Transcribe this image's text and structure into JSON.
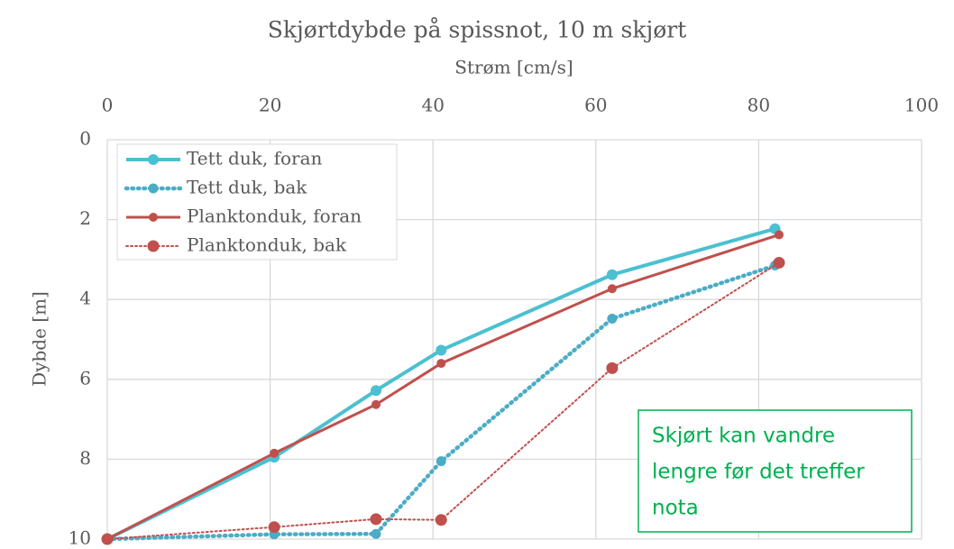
{
  "chart_data": {
    "type": "line",
    "title": "Skjørtdybde på spissnot, 10 m skjørt",
    "xlabel": "Strøm [cm/s]",
    "ylabel": "Dybde [m]",
    "xlim": [
      0,
      100
    ],
    "xticks": [
      0,
      20,
      40,
      60,
      80,
      100
    ],
    "ylim": [
      0,
      10
    ],
    "yticks": [
      0,
      2,
      4,
      6,
      8,
      10
    ],
    "y_inverted": true,
    "x_axis_position": "top",
    "grid": true,
    "legend_position": "top-left",
    "series": [
      {
        "name": "Tett duk, foran",
        "color": "#4bc0d0",
        "linestyle": "solid",
        "x": [
          0,
          20.5,
          33,
          41,
          62,
          82
        ],
        "values": [
          10,
          7.95,
          6.28,
          5.27,
          3.38,
          2.23
        ]
      },
      {
        "name": "Tett duk, bak",
        "color": "#4bacc6",
        "linestyle": "dotted",
        "x": [
          0,
          20.5,
          33,
          41,
          62,
          82
        ],
        "values": [
          10,
          9.88,
          9.87,
          8.05,
          4.48,
          3.15
        ]
      },
      {
        "name": "Planktonduk, foran",
        "color": "#c0504d",
        "linestyle": "solid",
        "x": [
          0,
          20.5,
          33,
          41,
          62,
          82.5
        ],
        "values": [
          10,
          7.85,
          6.63,
          5.6,
          3.73,
          2.38
        ]
      },
      {
        "name": "Planktonduk, bak",
        "color": "#c0504d",
        "linestyle": "dotted",
        "x": [
          0,
          20.5,
          33,
          41,
          62,
          82.5
        ],
        "values": [
          10,
          9.7,
          9.5,
          9.52,
          5.72,
          3.08
        ]
      }
    ],
    "annotation": {
      "lines": [
        "Skjørt kan vandre",
        "lengre før det treffer",
        "nota"
      ],
      "color": "#00b050"
    }
  }
}
